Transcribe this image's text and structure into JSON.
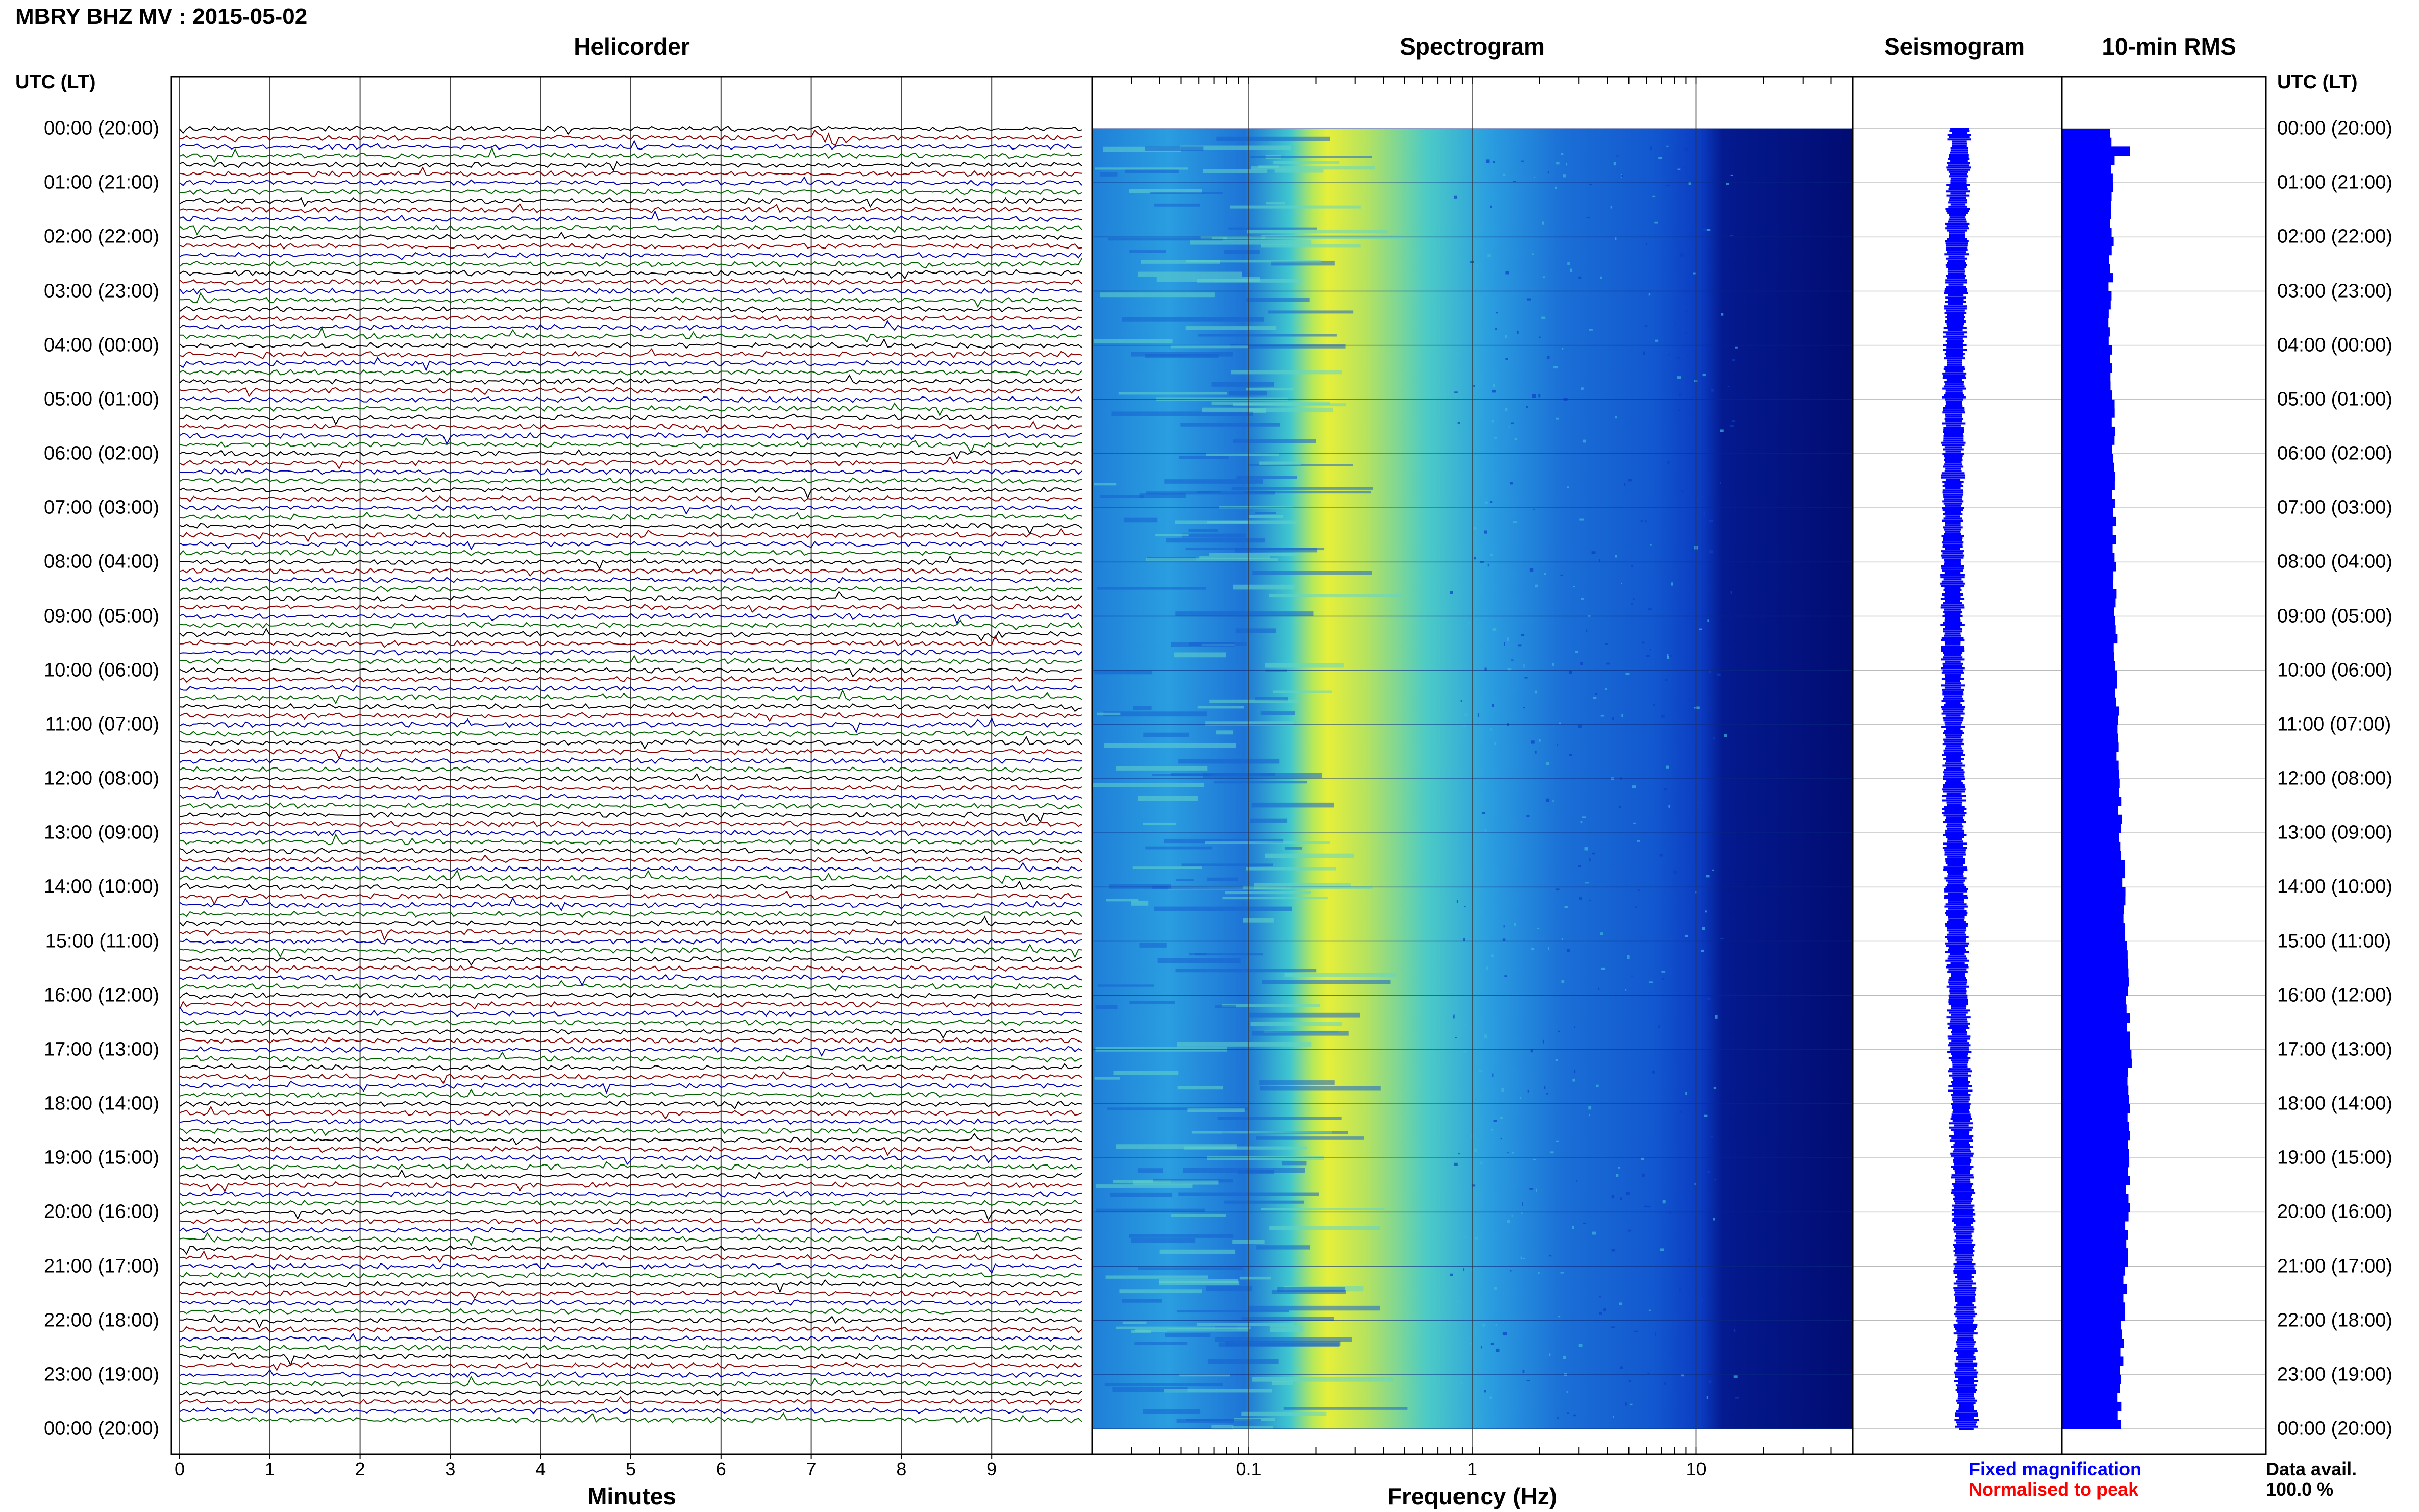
{
  "page": {
    "title": "MBRY BHZ MV : 2015-05-02",
    "utc_header_left": "UTC (LT)",
    "utc_header_right": "UTC (LT)"
  },
  "panels": {
    "helicorder": {
      "title": "Helicorder",
      "xlabel": "Minutes"
    },
    "spectrogram": {
      "title": "Spectrogram",
      "xlabel": "Frequency (Hz)"
    },
    "seismogram": {
      "title": "Seismogram"
    },
    "rms": {
      "title": "10-min RMS"
    }
  },
  "time_labels": [
    "00:00 (20:00)",
    "01:00 (21:00)",
    "02:00 (22:00)",
    "03:00 (23:00)",
    "04:00 (00:00)",
    "05:00 (01:00)",
    "06:00 (02:00)",
    "07:00 (03:00)",
    "08:00 (04:00)",
    "09:00 (05:00)",
    "10:00 (06:00)",
    "11:00 (07:00)",
    "12:00 (08:00)",
    "13:00 (09:00)",
    "14:00 (10:00)",
    "15:00 (11:00)",
    "16:00 (12:00)",
    "17:00 (13:00)",
    "18:00 (14:00)",
    "19:00 (15:00)",
    "20:00 (16:00)",
    "21:00 (17:00)",
    "22:00 (18:00)",
    "23:00 (19:00)",
    "00:00 (20:00)"
  ],
  "legend": {
    "fixed": "Fixed magnification",
    "normalised": "Normalised to peak",
    "data_avail_label": "Data avail.",
    "data_avail_value": "100.0 %"
  },
  "colors": {
    "trace_cycle": [
      "#000000",
      "#8b0000",
      "#0000b4",
      "#006400"
    ],
    "fixed": "#0000ff",
    "normalised": "#ff0000",
    "rms_bar": "#0000ff",
    "seismogram": "#0000ff"
  },
  "chart_data": [
    {
      "type": "line",
      "name_id": "helicorder",
      "x_ticks": [
        "0",
        "1",
        "2",
        "3",
        "4",
        "5",
        "6",
        "7",
        "8",
        "9"
      ],
      "xlim": [
        0,
        10
      ],
      "rows": 144,
      "row_minutes": 10,
      "event": {
        "row": 1,
        "minute_start": 6.8,
        "minute_end": 7.5
      }
    },
    {
      "type": "heatmap",
      "name_id": "spectrogram",
      "x_scale": "log",
      "xlim": [
        0.02,
        50
      ],
      "x_ticks": [
        "0.1",
        "1",
        "10"
      ],
      "x_tick_values": [
        0.1,
        1,
        10
      ],
      "peak_frequency_hz": [
        0.2,
        0.45
      ]
    },
    {
      "type": "line",
      "name_id": "seismogram",
      "note_values_hours": [
        0,
        24
      ]
    },
    {
      "type": "bar",
      "name_id": "rms",
      "bins": 144,
      "relative_values": [
        0.62,
        0.62,
        0.61,
        0.6,
        0.6,
        0.61,
        0.63,
        0.64,
        0.64,
        0.65,
        0.66,
        0.67,
        0.68,
        0.7,
        0.72,
        0.75,
        0.78,
        0.8,
        0.82,
        0.83,
        0.83,
        0.82,
        0.8,
        0.78,
        0.75,
        0.72,
        0.7
      ]
    }
  ]
}
